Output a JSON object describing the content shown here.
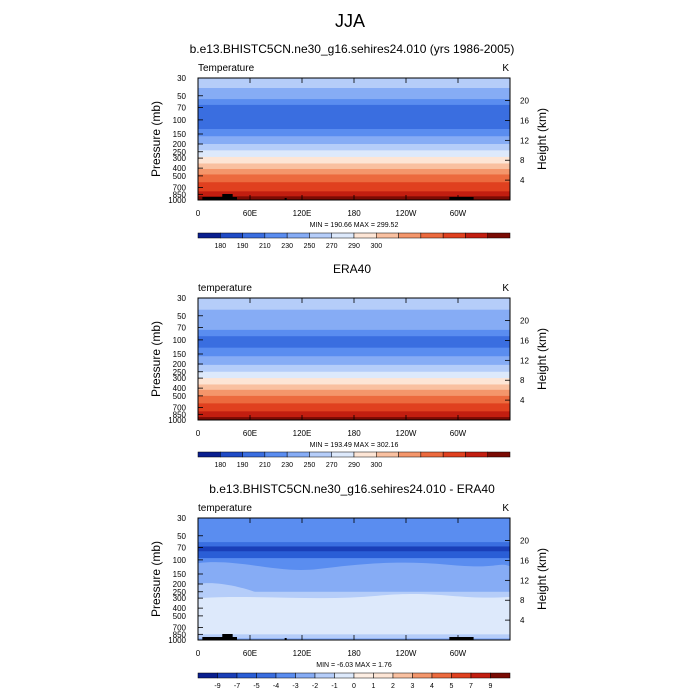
{
  "figure": {
    "title": "JJA"
  },
  "common": {
    "ylabel_left": "Pressure (mb)",
    "ylabel_right": "Height (km)",
    "pressure_ticks": [
      "30",
      "50",
      "70",
      "100",
      "150",
      "200",
      "250",
      "300",
      "400",
      "500",
      "700",
      "850",
      "1000"
    ],
    "pressure_values": [
      30,
      50,
      70,
      100,
      150,
      200,
      250,
      300,
      400,
      500,
      700,
      850,
      1000
    ],
    "height_ticks": [
      "20",
      "16",
      "12",
      "8",
      "4"
    ],
    "height_values": [
      20,
      16,
      12,
      8,
      4
    ],
    "lon_ticks": [
      "0",
      "60E",
      "120E",
      "180",
      "120W",
      "60W"
    ],
    "lon_values": [
      0,
      60,
      120,
      180,
      240,
      300
    ]
  },
  "chart_data": [
    {
      "type": "contour",
      "title": "b.e13.BHISTC5CN.ne30_g16.sehires24.010 (yrs 1986-2005)",
      "left_label": "Temperature",
      "right_label": "K",
      "stats": "MIN = 190.66  MAX = 299.52",
      "xlim": [
        0,
        360
      ],
      "ylim": [
        30,
        1000
      ],
      "yscale": "log",
      "levels": [
        180,
        190,
        210,
        230,
        250,
        270,
        290,
        300
      ],
      "colorbar_labels": [
        "180",
        "190",
        "210",
        "230",
        "250",
        "270",
        "290",
        "300"
      ],
      "colors": [
        "#0a1f8f",
        "#1f4bc6",
        "#3a6ee0",
        "#5a8df0",
        "#86acf5",
        "#b5cdf9",
        "#dde9fb",
        "#fde5d5",
        "#f9c0a0",
        "#f4966b",
        "#ec6a3e",
        "#e0401f",
        "#c21e10",
        "#7a0b04"
      ],
      "profile": [
        {
          "p": 30,
          "c": 5
        },
        {
          "p": 40,
          "c": 4
        },
        {
          "p": 55,
          "c": 3
        },
        {
          "p": 65,
          "c": 2
        },
        {
          "p": 130,
          "c": 3
        },
        {
          "p": 160,
          "c": 4
        },
        {
          "p": 200,
          "c": 5
        },
        {
          "p": 240,
          "c": 6
        },
        {
          "p": 290,
          "c": 7
        },
        {
          "p": 350,
          "c": 8
        },
        {
          "p": 410,
          "c": 9
        },
        {
          "p": 480,
          "c": 10
        },
        {
          "p": 600,
          "c": 11
        },
        {
          "p": 780,
          "c": 12
        },
        {
          "p": 900,
          "c": 13
        }
      ],
      "topography": true
    },
    {
      "type": "contour",
      "title": "ERA40",
      "left_label": "temperature",
      "right_label": "K",
      "stats": "MIN = 193.49  MAX = 302.16",
      "xlim": [
        0,
        360
      ],
      "ylim": [
        30,
        1000
      ],
      "yscale": "log",
      "levels": [
        180,
        190,
        210,
        230,
        250,
        270,
        290,
        300
      ],
      "colorbar_labels": [
        "180",
        "190",
        "210",
        "230",
        "250",
        "270",
        "290",
        "300"
      ],
      "colors": [
        "#0a1f8f",
        "#1f4bc6",
        "#3a6ee0",
        "#5a8df0",
        "#86acf5",
        "#b5cdf9",
        "#dde9fb",
        "#fde5d5",
        "#f9c0a0",
        "#f4966b",
        "#ec6a3e",
        "#e0401f",
        "#c21e10",
        "#7a0b04"
      ],
      "profile": [
        {
          "p": 30,
          "c": 5
        },
        {
          "p": 42,
          "c": 4
        },
        {
          "p": 75,
          "c": 3
        },
        {
          "p": 90,
          "c": 2
        },
        {
          "p": 125,
          "c": 3
        },
        {
          "p": 160,
          "c": 4
        },
        {
          "p": 205,
          "c": 5
        },
        {
          "p": 250,
          "c": 6
        },
        {
          "p": 300,
          "c": 7
        },
        {
          "p": 360,
          "c": 8
        },
        {
          "p": 420,
          "c": 9
        },
        {
          "p": 500,
          "c": 10
        },
        {
          "p": 620,
          "c": 11
        },
        {
          "p": 780,
          "c": 12
        },
        {
          "p": 920,
          "c": 13
        }
      ],
      "topography": false
    },
    {
      "type": "contour",
      "title": "b.e13.BHISTC5CN.ne30_g16.sehires24.010 - ERA40",
      "left_label": "temperature",
      "right_label": "K",
      "stats": "MIN = -6.03  MAX =  1.76",
      "xlim": [
        0,
        360
      ],
      "ylim": [
        30,
        1000
      ],
      "yscale": "log",
      "levels": [
        -9,
        -7,
        -5,
        -4,
        -3,
        -2,
        -1,
        0,
        1,
        2,
        3,
        4,
        5,
        7,
        9
      ],
      "colorbar_labels": [
        "-9",
        "-7",
        "-5",
        "-4",
        "-3",
        "-2",
        "-1",
        "0",
        "1",
        "2",
        "3",
        "4",
        "5",
        "7",
        "9"
      ],
      "colors": [
        "#0a1f8f",
        "#1a3fb8",
        "#2a5ed6",
        "#3a6ee0",
        "#5a8df0",
        "#86acf5",
        "#b5cdf9",
        "#dde9fb",
        "#fdeee3",
        "#fde5d5",
        "#f9c0a0",
        "#f4966b",
        "#ec6a3e",
        "#e0401f",
        "#c21e10",
        "#7a0b04"
      ],
      "profile": [
        {
          "p": 30,
          "c": 4
        },
        {
          "p": 60,
          "c": 3
        },
        {
          "p": 68,
          "c": 1
        },
        {
          "p": 78,
          "c": 2
        },
        {
          "p": 95,
          "c": 4
        },
        {
          "p": 150,
          "c": 5
        },
        {
          "p": 250,
          "c": 6
        },
        {
          "p": 500,
          "c": 7
        },
        {
          "p": 850,
          "c": 6
        },
        {
          "p": 950,
          "c": 5
        }
      ],
      "topography": true
    }
  ]
}
